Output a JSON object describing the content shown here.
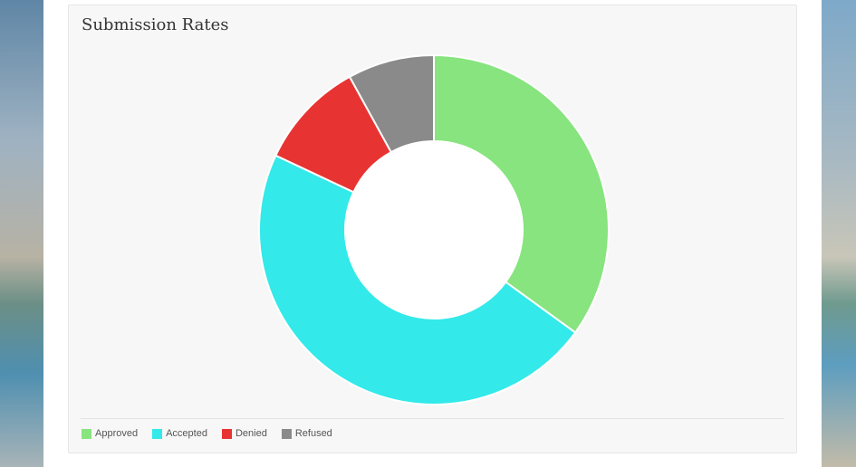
{
  "card": {
    "title": "Submission Rates"
  },
  "chart_data": {
    "type": "pie",
    "title": "Submission Rates",
    "donut": true,
    "categories": [
      "Approved",
      "Accepted",
      "Denied",
      "Refused"
    ],
    "values": [
      35,
      47,
      10,
      8
    ],
    "colors": [
      "#87e47e",
      "#33e9e9",
      "#e83333",
      "#8a8a8a"
    ],
    "legend": "bottom-left"
  }
}
